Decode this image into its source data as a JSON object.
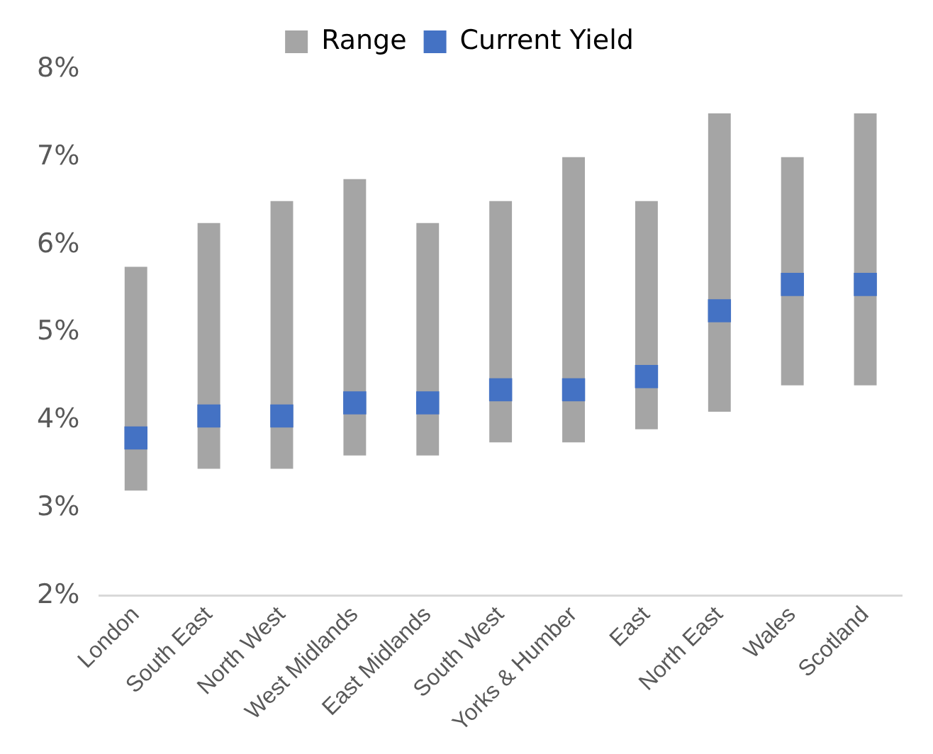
{
  "chart_data": {
    "type": "bar",
    "categories": [
      "London",
      "South East",
      "North West",
      "West Midlands",
      "East Midlands",
      "South West",
      "Yorks & Humber",
      "East",
      "North East",
      "Wales",
      "Scotland"
    ],
    "series": [
      {
        "name": "Range",
        "color": "#a5a5a5",
        "base": [
          3.2,
          3.45,
          3.45,
          3.6,
          3.6,
          3.75,
          3.75,
          3.9,
          4.1,
          4.4,
          4.4
        ],
        "values": [
          2.55,
          2.8,
          3.05,
          3.15,
          2.65,
          2.75,
          3.25,
          2.6,
          3.4,
          2.6,
          3.1
        ]
      },
      {
        "name": "Current Yield",
        "type": "scatter",
        "color": "#4472c4",
        "x": [
          "London",
          "South East",
          "North West",
          "West Midlands",
          "East Midlands",
          "South West",
          "Yorks & Humber",
          "East",
          "North East",
          "Wales",
          "Scotland"
        ],
        "values": [
          3.8,
          4.05,
          4.05,
          4.2,
          4.2,
          4.35,
          4.35,
          4.5,
          5.25,
          5.55,
          5.55
        ]
      }
    ],
    "ylim": [
      2,
      8
    ],
    "yticks": [
      {
        "value": 2,
        "label": "2%"
      },
      {
        "value": 3,
        "label": "3%"
      },
      {
        "value": 4,
        "label": "4%"
      },
      {
        "value": 5,
        "label": "5%"
      },
      {
        "value": 6,
        "label": "6%"
      },
      {
        "value": 7,
        "label": "7%"
      },
      {
        "value": 8,
        "label": "8%"
      }
    ],
    "grid": false,
    "legend": "top",
    "marker": "square"
  }
}
